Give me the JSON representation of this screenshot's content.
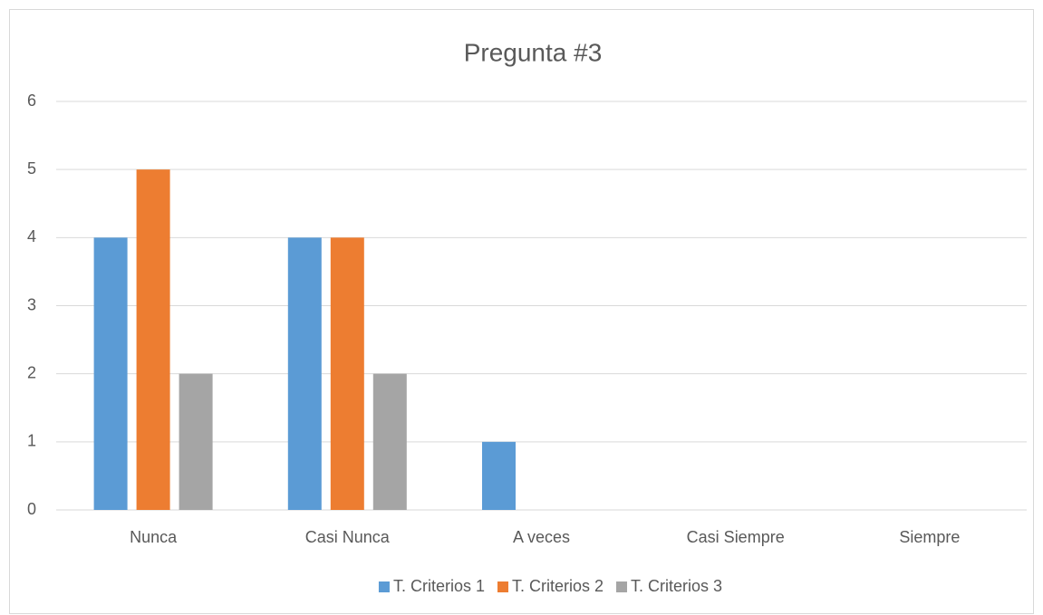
{
  "chart_data": {
    "type": "bar",
    "title": "Pregunta #3",
    "categories": [
      "Nunca",
      "Casi Nunca",
      "A veces",
      "Casi Siempre",
      "Siempre"
    ],
    "series": [
      {
        "name": "T. Criterios 1",
        "color": "#5b9bd5",
        "values": [
          4,
          4,
          1,
          0,
          0
        ]
      },
      {
        "name": "T. Criterios 2",
        "color": "#ed7d31",
        "values": [
          5,
          4,
          0,
          0,
          0
        ]
      },
      {
        "name": "T. Criterios 3",
        "color": "#a5a5a5",
        "values": [
          2,
          2,
          0,
          0,
          0
        ]
      }
    ],
    "ylim": [
      0,
      6
    ],
    "yticks": [
      0,
      1,
      2,
      3,
      4,
      5,
      6
    ],
    "grid": true,
    "legend": "bottom"
  }
}
